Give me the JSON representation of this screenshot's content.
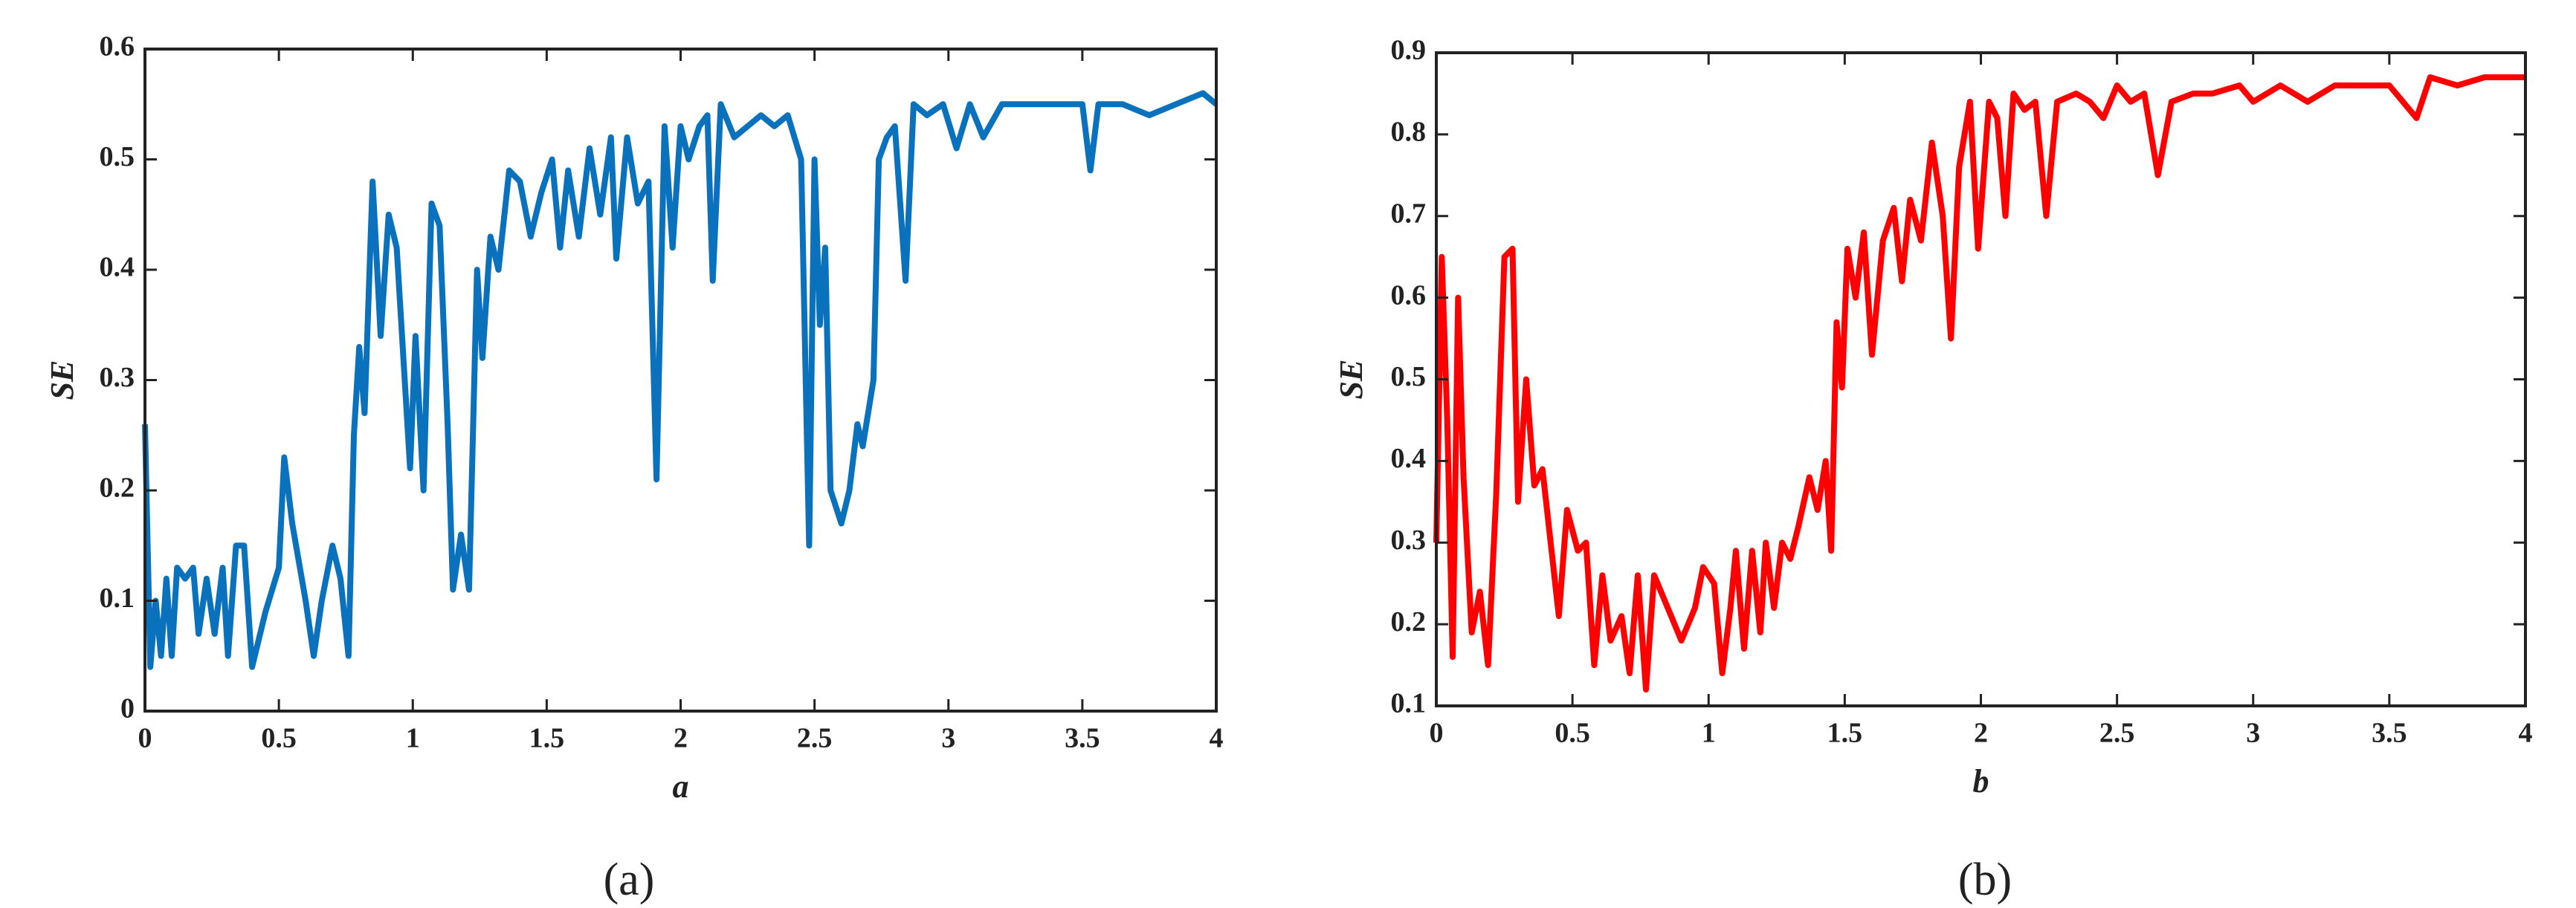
{
  "chart_data": [
    {
      "type": "line",
      "xlabel": "a",
      "ylabel": "SE",
      "caption": "(a)",
      "color": "#0a72bd",
      "xlim": [
        0,
        4
      ],
      "xticks": [
        0,
        0.5,
        1,
        1.5,
        2,
        2.5,
        3,
        3.5,
        4
      ],
      "ylim": [
        0,
        0.6
      ],
      "yticks": [
        0,
        0.1,
        0.2,
        0.3,
        0.4,
        0.5,
        0.6
      ],
      "x": [
        0,
        0.02,
        0.04,
        0.06,
        0.08,
        0.1,
        0.12,
        0.15,
        0.18,
        0.2,
        0.23,
        0.26,
        0.29,
        0.31,
        0.34,
        0.37,
        0.4,
        0.45,
        0.5,
        0.52,
        0.55,
        0.6,
        0.63,
        0.66,
        0.7,
        0.73,
        0.76,
        0.78,
        0.8,
        0.82,
        0.85,
        0.88,
        0.91,
        0.94,
        0.97,
        0.99,
        1.01,
        1.04,
        1.07,
        1.1,
        1.13,
        1.15,
        1.18,
        1.21,
        1.24,
        1.26,
        1.29,
        1.32,
        1.36,
        1.4,
        1.44,
        1.48,
        1.52,
        1.55,
        1.58,
        1.62,
        1.66,
        1.7,
        1.74,
        1.76,
        1.8,
        1.84,
        1.88,
        1.91,
        1.94,
        1.97,
        2.0,
        2.03,
        2.07,
        2.1,
        2.12,
        2.15,
        2.2,
        2.25,
        2.3,
        2.35,
        2.4,
        2.45,
        2.48,
        2.5,
        2.52,
        2.54,
        2.56,
        2.6,
        2.63,
        2.66,
        2.68,
        2.72,
        2.74,
        2.77,
        2.8,
        2.84,
        2.87,
        2.92,
        2.98,
        3.03,
        3.08,
        3.13,
        3.2,
        3.3,
        3.4,
        3.5,
        3.53,
        3.56,
        3.65,
        3.75,
        3.85,
        3.95,
        4
      ],
      "values": [
        0.26,
        0.04,
        0.1,
        0.05,
        0.12,
        0.05,
        0.13,
        0.12,
        0.13,
        0.07,
        0.12,
        0.07,
        0.13,
        0.05,
        0.15,
        0.15,
        0.04,
        0.09,
        0.13,
        0.23,
        0.17,
        0.1,
        0.05,
        0.1,
        0.15,
        0.12,
        0.05,
        0.25,
        0.33,
        0.27,
        0.48,
        0.34,
        0.45,
        0.42,
        0.3,
        0.22,
        0.34,
        0.2,
        0.46,
        0.44,
        0.26,
        0.11,
        0.16,
        0.11,
        0.4,
        0.32,
        0.43,
        0.4,
        0.49,
        0.48,
        0.43,
        0.47,
        0.5,
        0.42,
        0.49,
        0.43,
        0.51,
        0.45,
        0.52,
        0.41,
        0.52,
        0.46,
        0.48,
        0.21,
        0.53,
        0.42,
        0.53,
        0.5,
        0.53,
        0.54,
        0.39,
        0.55,
        0.52,
        0.53,
        0.54,
        0.53,
        0.54,
        0.5,
        0.15,
        0.5,
        0.35,
        0.42,
        0.2,
        0.17,
        0.2,
        0.26,
        0.24,
        0.3,
        0.5,
        0.52,
        0.53,
        0.39,
        0.55,
        0.54,
        0.55,
        0.51,
        0.55,
        0.52,
        0.55,
        0.55,
        0.55,
        0.55,
        0.49,
        0.55,
        0.55,
        0.54,
        0.55,
        0.56,
        0.55
      ]
    },
    {
      "type": "line",
      "xlabel": "b",
      "ylabel": "SE",
      "caption": "(b)",
      "color": "#ff0000",
      "xlim": [
        0,
        4
      ],
      "xticks": [
        0,
        0.5,
        1,
        1.5,
        2,
        2.5,
        3,
        3.5,
        4
      ],
      "ylim": [
        0.1,
        0.9
      ],
      "yticks": [
        0.1,
        0.2,
        0.3,
        0.4,
        0.5,
        0.6,
        0.7,
        0.8,
        0.9
      ],
      "x": [
        0,
        0.02,
        0.04,
        0.06,
        0.08,
        0.1,
        0.13,
        0.16,
        0.19,
        0.22,
        0.25,
        0.28,
        0.3,
        0.33,
        0.36,
        0.39,
        0.42,
        0.45,
        0.48,
        0.52,
        0.55,
        0.58,
        0.61,
        0.64,
        0.68,
        0.71,
        0.74,
        0.77,
        0.8,
        0.85,
        0.9,
        0.95,
        0.98,
        1.02,
        1.05,
        1.08,
        1.1,
        1.13,
        1.16,
        1.19,
        1.21,
        1.24,
        1.27,
        1.3,
        1.33,
        1.37,
        1.4,
        1.43,
        1.45,
        1.47,
        1.49,
        1.51,
        1.54,
        1.57,
        1.6,
        1.64,
        1.68,
        1.71,
        1.74,
        1.78,
        1.82,
        1.86,
        1.89,
        1.92,
        1.96,
        1.99,
        2.03,
        2.06,
        2.09,
        2.12,
        2.16,
        2.2,
        2.24,
        2.28,
        2.35,
        2.4,
        2.45,
        2.5,
        2.55,
        2.6,
        2.65,
        2.7,
        2.78,
        2.85,
        2.95,
        3.0,
        3.1,
        3.2,
        3.3,
        3.4,
        3.5,
        3.6,
        3.65,
        3.75,
        3.85,
        4
      ],
      "values": [
        0.3,
        0.65,
        0.45,
        0.16,
        0.6,
        0.38,
        0.19,
        0.24,
        0.15,
        0.36,
        0.65,
        0.66,
        0.35,
        0.5,
        0.37,
        0.39,
        0.3,
        0.21,
        0.34,
        0.29,
        0.3,
        0.15,
        0.26,
        0.18,
        0.21,
        0.14,
        0.26,
        0.12,
        0.26,
        0.22,
        0.18,
        0.22,
        0.27,
        0.25,
        0.14,
        0.22,
        0.29,
        0.17,
        0.29,
        0.19,
        0.3,
        0.22,
        0.3,
        0.28,
        0.32,
        0.38,
        0.34,
        0.4,
        0.29,
        0.57,
        0.49,
        0.66,
        0.6,
        0.68,
        0.53,
        0.67,
        0.71,
        0.62,
        0.72,
        0.67,
        0.79,
        0.7,
        0.55,
        0.76,
        0.84,
        0.66,
        0.84,
        0.82,
        0.7,
        0.85,
        0.83,
        0.84,
        0.7,
        0.84,
        0.85,
        0.84,
        0.82,
        0.86,
        0.84,
        0.85,
        0.75,
        0.84,
        0.85,
        0.85,
        0.86,
        0.84,
        0.86,
        0.84,
        0.86,
        0.86,
        0.86,
        0.82,
        0.87,
        0.86,
        0.87,
        0.87
      ]
    }
  ]
}
